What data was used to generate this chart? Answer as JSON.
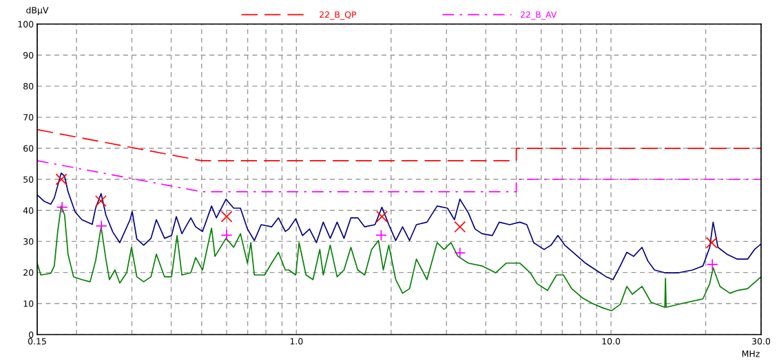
{
  "chart_data": {
    "type": "line",
    "xlabel": "MHz",
    "ylabel": "dBµV",
    "log": "x",
    "grid": true,
    "legend": "top",
    "xlim": [
      0.15,
      30
    ],
    "ylim": [
      0,
      100
    ],
    "xticks": [
      {
        "value": 0.15,
        "label": "0.15"
      },
      {
        "value": 0.2,
        "label": null
      },
      {
        "value": 0.3,
        "label": null
      },
      {
        "value": 0.4,
        "label": null
      },
      {
        "value": 0.5,
        "label": null
      },
      {
        "value": 0.6,
        "label": null
      },
      {
        "value": 0.7,
        "label": null
      },
      {
        "value": 0.8,
        "label": null
      },
      {
        "value": 0.9,
        "label": null
      },
      {
        "value": 1,
        "label": "1.0"
      },
      {
        "value": 2,
        "label": null
      },
      {
        "value": 3,
        "label": null
      },
      {
        "value": 4,
        "label": null
      },
      {
        "value": 5,
        "label": null
      },
      {
        "value": 6,
        "label": null
      },
      {
        "value": 7,
        "label": null
      },
      {
        "value": 8,
        "label": null
      },
      {
        "value": 9,
        "label": null
      },
      {
        "value": 10,
        "label": "10.0"
      },
      {
        "value": 20,
        "label": null
      },
      {
        "value": 30,
        "label": "30.0"
      }
    ],
    "yticks": [
      0,
      10,
      20,
      30,
      40,
      50,
      60,
      70,
      80,
      90,
      100
    ],
    "series": [
      {
        "name": "22_B_QP",
        "color": "#ff0000",
        "line_style": "dashed",
        "x": [
          0.15,
          0.5,
          5,
          5,
          30
        ],
        "values": [
          66,
          56,
          56,
          60,
          60
        ]
      },
      {
        "name": "22_B_AV",
        "color": "#ff00ff",
        "line_style": "dashdot",
        "x": [
          0.15,
          0.5,
          5,
          5,
          30
        ],
        "values": [
          56,
          46,
          46,
          50,
          50
        ]
      },
      {
        "color": "#000080",
        "x": [
          0.15,
          0.1575,
          0.1657,
          0.17,
          0.1788,
          0.1833,
          0.188,
          0.198,
          0.208,
          0.2244,
          0.23,
          0.2395,
          0.248,
          0.261,
          0.2746,
          0.296,
          0.3007,
          0.311,
          0.327,
          0.345,
          0.3588,
          0.381,
          0.401,
          0.4153,
          0.4325,
          0.4618,
          0.4784,
          0.5031,
          0.5375,
          0.5567,
          0.5975,
          0.632,
          0.664,
          0.699,
          0.735,
          0.773,
          0.834,
          0.877,
          0.922,
          0.946,
          0.995,
          1.046,
          1.101,
          1.158,
          1.217,
          1.281,
          1.347,
          1.417,
          1.49,
          1.567,
          1.649,
          1.778,
          1.87,
          1.967,
          2.069,
          2.176,
          2.289,
          2.407,
          2.6,
          2.802,
          3.022,
          3.18,
          3.309,
          3.52,
          3.698,
          3.89,
          4.196,
          4.413,
          4.761,
          5.134,
          5.4,
          5.68,
          6.128,
          6.45,
          6.78,
          7.13,
          7.691,
          8.296,
          8.949,
          9.66,
          10.15,
          10.7,
          11.23,
          11.8,
          12.55,
          13.1,
          13.75,
          14.83,
          16.4,
          18.15,
          19.6,
          20.6,
          21.12,
          21.88,
          23.35,
          25.19,
          27.18,
          28.58,
          30
        ],
        "values": [
          45,
          43,
          42,
          44,
          52,
          51,
          46,
          39.5,
          37,
          35.5,
          40.7,
          45.4,
          38.5,
          33,
          29.6,
          37,
          39.6,
          30.8,
          28.8,
          31,
          37,
          31,
          31.9,
          38,
          32.5,
          37.6,
          34.7,
          33.2,
          41.4,
          37.6,
          43.6,
          40.7,
          40.7,
          34,
          30.3,
          35.4,
          34.7,
          37.6,
          33.2,
          34,
          37.3,
          31.9,
          34,
          29.6,
          36.2,
          31,
          36.2,
          31,
          37.6,
          37.6,
          34.7,
          35.4,
          41,
          35.4,
          30.3,
          34.7,
          30.3,
          35.4,
          36.2,
          41.4,
          40.7,
          37,
          43.6,
          39.2,
          34,
          32.5,
          31.9,
          36.2,
          35.4,
          36.2,
          35.4,
          29.6,
          27.4,
          28.8,
          31.9,
          28.8,
          25.9,
          23,
          20.8,
          18.6,
          17.7,
          22.1,
          26.5,
          25.2,
          28.1,
          23.7,
          20.8,
          19.9,
          19.9,
          20.8,
          22.1,
          28.1,
          36.2,
          28.1,
          25.9,
          24.3,
          24.3,
          27.4,
          29.2
        ]
      },
      {
        "color": "#008000",
        "x": [
          0.15,
          0.154,
          0.1657,
          0.17,
          0.1743,
          0.1788,
          0.1833,
          0.188,
          0.1957,
          0.208,
          0.2209,
          0.23,
          0.2395,
          0.248,
          0.2545,
          0.265,
          0.2746,
          0.2887,
          0.2992,
          0.311,
          0.327,
          0.345,
          0.3588,
          0.381,
          0.401,
          0.4175,
          0.4325,
          0.4618,
          0.4784,
          0.5031,
          0.5375,
          0.5511,
          0.5975,
          0.632,
          0.664,
          0.699,
          0.7166,
          0.735,
          0.7925,
          0.834,
          0.877,
          0.922,
          0.946,
          0.995,
          1.02,
          1.073,
          1.129,
          1.187,
          1.217,
          1.281,
          1.347,
          1.417,
          1.49,
          1.567,
          1.649,
          1.734,
          1.824,
          1.889,
          1.967,
          2.069,
          2.176,
          2.289,
          2.407,
          2.6,
          2.802,
          2.946,
          3.099,
          3.261,
          3.52,
          3.89,
          4.3,
          4.642,
          5.134,
          5.538,
          5.82,
          6.284,
          6.713,
          7.06,
          7.499,
          8.089,
          8.73,
          9.412,
          10.05,
          10.7,
          11.23,
          11.69,
          12.55,
          13.41,
          14.83,
          14.9,
          14.97,
          16.82,
          19.6,
          20.6,
          21.12,
          22.21,
          23.9,
          25.19,
          27.18,
          30
        ],
        "values": [
          23,
          19.2,
          19.7,
          22.1,
          33.2,
          41.4,
          38.5,
          25.9,
          18.6,
          17.7,
          17,
          23.7,
          34.7,
          24.3,
          17.7,
          20.8,
          16.6,
          19.9,
          28.1,
          18.6,
          17,
          18.6,
          25.9,
          18.6,
          18.6,
          31.9,
          19.2,
          19.9,
          24.8,
          20.8,
          34.3,
          25.2,
          31,
          28.1,
          32.5,
          23,
          29.6,
          19.2,
          19.2,
          23,
          26.5,
          20.8,
          20.8,
          19.2,
          29.6,
          19.2,
          17.7,
          27.4,
          19.2,
          28.8,
          18.6,
          20.8,
          28.1,
          20.8,
          19.2,
          27.4,
          30.3,
          20.8,
          28.8,
          17.7,
          13.3,
          14.8,
          24.3,
          17.7,
          29.6,
          27.4,
          29.6,
          25.2,
          23,
          22.1,
          19.9,
          23,
          23,
          19.9,
          16.4,
          14.2,
          19.2,
          19.2,
          14.8,
          11.9,
          10,
          8.6,
          7.7,
          9.7,
          15.5,
          13,
          15.5,
          10.4,
          8.8,
          18.1,
          8.8,
          10,
          11.5,
          16.4,
          21.5,
          15.5,
          13.3,
          14.2,
          14.8,
          18.6
        ]
      },
      {
        "type": "scatter",
        "marker": "cross",
        "color": "#ff0000",
        "x": [
          0.179,
          0.239,
          0.6,
          1.87,
          3.31,
          20.9
        ],
        "values": [
          50,
          43,
          38,
          38,
          34.7,
          29.6
        ]
      },
      {
        "type": "scatter",
        "marker": "plus",
        "color": "#ff00ff",
        "x": [
          0.18,
          0.24,
          0.6,
          1.86,
          3.31,
          21
        ],
        "values": [
          41,
          35,
          32,
          32,
          26.3,
          22.6
        ]
      }
    ]
  }
}
